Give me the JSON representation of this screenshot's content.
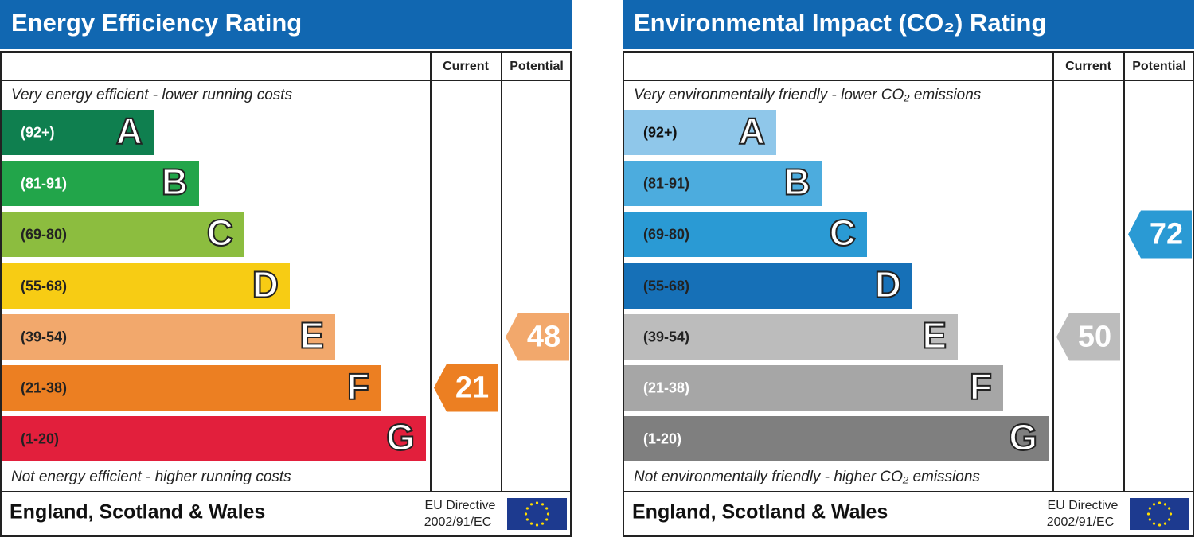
{
  "panels": [
    {
      "title": "Energy Efficiency Rating",
      "columns": [
        "Current",
        "Potential"
      ],
      "top_note": "Very energy efficient - lower running costs",
      "bottom_note": "Not energy efficient - higher running costs",
      "bands": [
        {
          "range": "(92+)",
          "letter": "A",
          "color": "#0f7f4f",
          "text_color": "#ffffff"
        },
        {
          "range": "(81-91)",
          "letter": "B",
          "color": "#22a54a",
          "text_color": "#ffffff"
        },
        {
          "range": "(69-80)",
          "letter": "C",
          "color": "#8cbd3f",
          "text_color": "#222222"
        },
        {
          "range": "(55-68)",
          "letter": "D",
          "color": "#f7cc14",
          "text_color": "#222222"
        },
        {
          "range": "(39-54)",
          "letter": "E",
          "color": "#f2a86c",
          "text_color": "#222222"
        },
        {
          "range": "(21-38)",
          "letter": "F",
          "color": "#ec7f22",
          "text_color": "#222222"
        },
        {
          "range": "(1-20)",
          "letter": "G",
          "color": "#e21f3c",
          "text_color": "#222222"
        }
      ],
      "current": 21,
      "potential": 48,
      "footer": {
        "region": "England, Scotland & Wales",
        "directive": "EU Directive",
        "code": "2002/91/EC"
      }
    },
    {
      "title": "Environmental Impact (CO₂) Rating",
      "columns": [
        "Current",
        "Potential"
      ],
      "top_note": "Very environmentally friendly - lower CO₂ emissions",
      "bottom_note": "Not environmentally friendly - higher CO₂ emissions",
      "bands": [
        {
          "range": "(92+)",
          "letter": "A",
          "color": "#8fc7ea",
          "text_color": "#111111"
        },
        {
          "range": "(81-91)",
          "letter": "B",
          "color": "#4cacde",
          "text_color": "#222222"
        },
        {
          "range": "(69-80)",
          "letter": "C",
          "color": "#2a9ad4",
          "text_color": "#222222"
        },
        {
          "range": "(55-68)",
          "letter": "D",
          "color": "#1670b7",
          "text_color": "#222222"
        },
        {
          "range": "(39-54)",
          "letter": "E",
          "color": "#bcbcbc",
          "text_color": "#222222"
        },
        {
          "range": "(21-38)",
          "letter": "F",
          "color": "#a6a6a6",
          "text_color": "#ffffff"
        },
        {
          "range": "(1-20)",
          "letter": "G",
          "color": "#7f7f7f",
          "text_color": "#ffffff"
        }
      ],
      "current": 50,
      "potential": 72,
      "footer": {
        "region": "England, Scotland & Wales",
        "directive": "EU Directive",
        "code": "2002/91/EC"
      }
    }
  ]
}
